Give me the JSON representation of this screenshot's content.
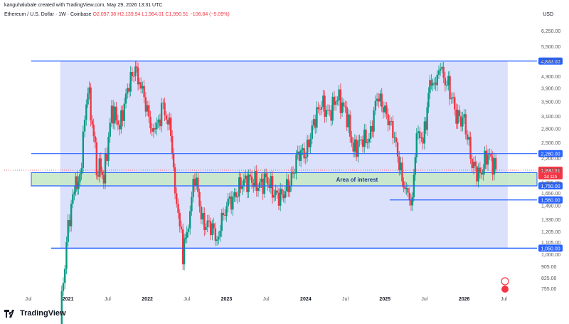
{
  "header": {
    "credit": "kanguhalubale created with TradingView.com, May 29, 2026 13:31 UTC",
    "symbol": "Ethereum / U.S. Dollar · 1W · Coinbase",
    "ohlc": "O2,097.38  H2,139.94  L1,964.01  C1,990.51  −106.84 (−5.09%)"
  },
  "currency_label": "USD",
  "brand": {
    "name": "TradingView",
    "logo_icon": "tradingview-logo-icon"
  },
  "colors": {
    "up": "#089981",
    "down": "#f23645",
    "range_box": "#d6dcfa",
    "zone_fill": "#c6e8c6",
    "line": "#2962ff",
    "label_bg": "#2962ff",
    "text": "#131722",
    "axis_text": "#555555"
  },
  "chart_data": {
    "type": "candlestick",
    "scale": "log",
    "ylim": [
      700,
      6900
    ],
    "price_ticks": [
      6250,
      5500,
      4900,
      4300,
      3900,
      3500,
      3100,
      2800,
      2500,
      2200,
      2000,
      1800,
      1650,
      1490,
      1330,
      1205,
      1105,
      1000,
      905,
      825,
      755
    ],
    "time_labels": [
      "Jul",
      "2021",
      "Jul",
      "2022",
      "Jul",
      "2023",
      "Jul",
      "2024",
      "Jul",
      "2025",
      "Jul",
      "2026",
      "Jul"
    ],
    "levels": [
      {
        "price": 4868,
        "label": "4,868.00"
      },
      {
        "price": 2280,
        "label": "2,280.00"
      },
      {
        "price": 1750,
        "label": "1,750.00"
      },
      {
        "price": 1560,
        "label": "1,560.00"
      },
      {
        "price": 1050,
        "label": "1,050.00"
      }
    ],
    "current_price": {
      "price": 1990.51,
      "label": "1,990.51",
      "countdown": "2d 11h"
    },
    "zone": {
      "label": "Area of interest",
      "low": 1750,
      "high": 1950
    },
    "range_box": {
      "low": 1050,
      "high": 4868
    },
    "series": [
      {
        "name": "ETHUSD weekly close",
        "t": [
          2020.9,
          2021.0,
          2021.08,
          2021.15,
          2021.25,
          2021.36,
          2021.45,
          2021.55,
          2021.65,
          2021.75,
          2021.85,
          2021.9,
          2022.0,
          2022.08,
          2022.2,
          2022.28,
          2022.35,
          2022.45,
          2022.5,
          2022.6,
          2022.7,
          2022.8,
          2022.88,
          2023.0,
          2023.1,
          2023.2,
          2023.3,
          2023.4,
          2023.5,
          2023.6,
          2023.7,
          2023.8,
          2023.9,
          2024.0,
          2024.1,
          2024.2,
          2024.3,
          2024.4,
          2024.5,
          2024.6,
          2024.7,
          2024.8,
          2024.9,
          2025.0,
          2025.1,
          2025.2,
          2025.27,
          2025.33,
          2025.4,
          2025.5,
          2025.55,
          2025.62,
          2025.7,
          2025.8,
          2025.9,
          2026.0,
          2026.1,
          2026.2,
          2026.3,
          2026.4
        ],
        "close": [
          600,
          1250,
          1700,
          1900,
          4000,
          2100,
          1900,
          3200,
          2900,
          3800,
          4700,
          4100,
          3300,
          2600,
          3400,
          2800,
          1800,
          1000,
          1200,
          1900,
          1300,
          1250,
          1150,
          1500,
          1600,
          1800,
          1850,
          1750,
          1850,
          1650,
          1600,
          1800,
          2250,
          2300,
          2900,
          3500,
          3100,
          3700,
          3200,
          2400,
          2500,
          2600,
          3600,
          3300,
          2700,
          2000,
          1600,
          1500,
          2500,
          2700,
          3700,
          4300,
          4400,
          4000,
          3100,
          3000,
          2100,
          1900,
          2300,
          1990
        ]
      }
    ]
  }
}
